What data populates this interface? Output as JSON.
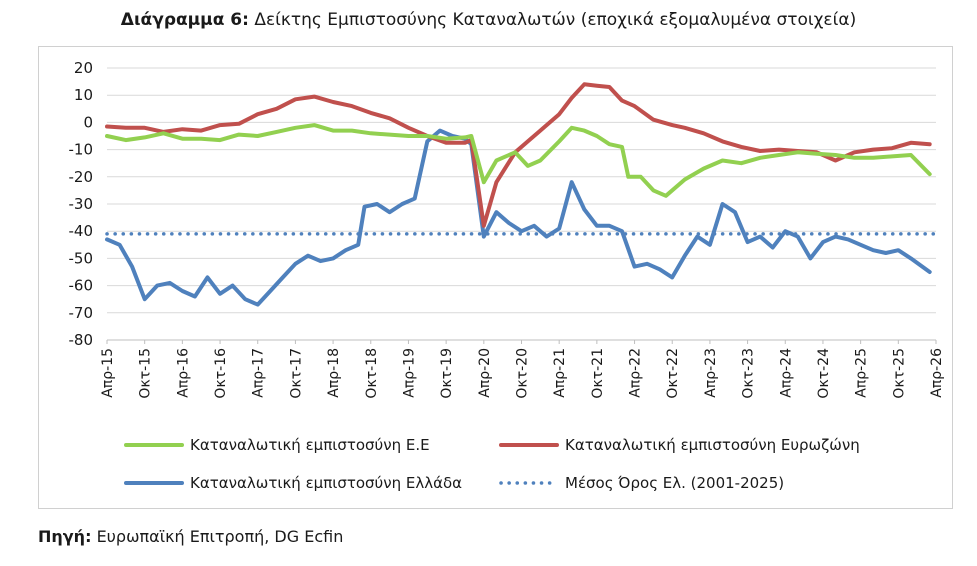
{
  "title": {
    "bold": "Διάγραμμα 6:",
    "text": "Δείκτης Εμπιστοσύνης Καταναλωτών (εποχικά εξομαλυμένα στοιχεία)"
  },
  "source": {
    "bold": "Πηγή:",
    "text": "Ευρωπαϊκή Επιτροπή, DG Ecfin"
  },
  "colors": {
    "eu": "#92d050",
    "ez": "#c0504d",
    "gr": "#4f81bd",
    "avg": "#4f81bd"
  },
  "chart_data": {
    "type": "line",
    "ylim": [
      -80,
      20
    ],
    "yticks": [
      20,
      10,
      0,
      -10,
      -20,
      -30,
      -40,
      -50,
      -60,
      -70,
      -80
    ],
    "xrange": [
      "2015-04",
      "2026-04"
    ],
    "xticks": [
      "Απρ-15",
      "Οκτ-15",
      "Απρ-16",
      "Οκτ-16",
      "Απρ-17",
      "Οκτ-17",
      "Απρ-18",
      "Οκτ-18",
      "Απρ-19",
      "Οκτ-19",
      "Απρ-20",
      "Οκτ-20",
      "Απρ-21",
      "Οκτ-21",
      "Απρ-22",
      "Οκτ-22",
      "Απρ-23",
      "Οκτ-23",
      "Απρ-24",
      "Οκτ-24",
      "Απρ-25",
      "Οκτ-25",
      "Απρ-26"
    ],
    "legend_position": "bottom",
    "series": [
      {
        "key": "eu",
        "name": "Καταναλωτική εμπιστοσύνη Ε.Ε",
        "points": [
          [
            "2015-04",
            -5
          ],
          [
            "2015-07",
            -6.5
          ],
          [
            "2015-10",
            -5.5
          ],
          [
            "2016-01",
            -4
          ],
          [
            "2016-04",
            -6
          ],
          [
            "2016-07",
            -6
          ],
          [
            "2016-10",
            -6.5
          ],
          [
            "2017-01",
            -4.5
          ],
          [
            "2017-04",
            -5
          ],
          [
            "2017-07",
            -3.5
          ],
          [
            "2017-10",
            -2
          ],
          [
            "2018-01",
            -1
          ],
          [
            "2018-04",
            -3
          ],
          [
            "2018-07",
            -3
          ],
          [
            "2018-10",
            -4
          ],
          [
            "2019-01",
            -4.5
          ],
          [
            "2019-04",
            -5
          ],
          [
            "2019-07",
            -5
          ],
          [
            "2019-10",
            -6
          ],
          [
            "2020-01",
            -5.5
          ],
          [
            "2020-02",
            -5
          ],
          [
            "2020-04",
            -22
          ],
          [
            "2020-06",
            -14
          ],
          [
            "2020-09",
            -11
          ],
          [
            "2020-11",
            -16
          ],
          [
            "2021-01",
            -14
          ],
          [
            "2021-04",
            -7
          ],
          [
            "2021-06",
            -2
          ],
          [
            "2021-08",
            -3
          ],
          [
            "2021-10",
            -5
          ],
          [
            "2021-12",
            -8
          ],
          [
            "2022-02",
            -9
          ],
          [
            "2022-03",
            -20
          ],
          [
            "2022-05",
            -20
          ],
          [
            "2022-07",
            -25
          ],
          [
            "2022-09",
            -27
          ],
          [
            "2022-12",
            -21
          ],
          [
            "2023-03",
            -17
          ],
          [
            "2023-06",
            -14
          ],
          [
            "2023-09",
            -15
          ],
          [
            "2023-12",
            -13
          ],
          [
            "2024-03",
            -12
          ],
          [
            "2024-06",
            -11
          ],
          [
            "2024-09",
            -11.5
          ],
          [
            "2024-12",
            -12
          ],
          [
            "2025-03",
            -13
          ],
          [
            "2025-06",
            -13
          ],
          [
            "2025-09",
            -12.5
          ],
          [
            "2025-12",
            -12
          ],
          [
            "2026-03",
            -19
          ]
        ]
      },
      {
        "key": "ez",
        "name": "Καταναλωτική εμπιστοσύνη Ευρωζώνη",
        "points": [
          [
            "2015-04",
            -1.5
          ],
          [
            "2015-07",
            -2
          ],
          [
            "2015-10",
            -2
          ],
          [
            "2016-01",
            -3.5
          ],
          [
            "2016-04",
            -2.5
          ],
          [
            "2016-07",
            -3
          ],
          [
            "2016-10",
            -1
          ],
          [
            "2017-01",
            -0.5
          ],
          [
            "2017-04",
            3
          ],
          [
            "2017-07",
            5
          ],
          [
            "2017-10",
            8.5
          ],
          [
            "2018-01",
            9.5
          ],
          [
            "2018-04",
            7.5
          ],
          [
            "2018-07",
            6
          ],
          [
            "2018-10",
            3.5
          ],
          [
            "2019-01",
            1.5
          ],
          [
            "2019-04",
            -2
          ],
          [
            "2019-07",
            -5
          ],
          [
            "2019-10",
            -7.5
          ],
          [
            "2020-01",
            -7.5
          ],
          [
            "2020-02",
            -6.5
          ],
          [
            "2020-04",
            -38
          ],
          [
            "2020-06",
            -22
          ],
          [
            "2020-09",
            -11
          ],
          [
            "2020-11",
            -7
          ],
          [
            "2021-01",
            -3
          ],
          [
            "2021-04",
            3
          ],
          [
            "2021-06",
            9
          ],
          [
            "2021-08",
            14
          ],
          [
            "2021-10",
            13.5
          ],
          [
            "2021-12",
            13
          ],
          [
            "2022-02",
            8
          ],
          [
            "2022-04",
            6
          ],
          [
            "2022-07",
            1
          ],
          [
            "2022-10",
            -1
          ],
          [
            "2022-12",
            -2
          ],
          [
            "2023-03",
            -4
          ],
          [
            "2023-06",
            -7
          ],
          [
            "2023-09",
            -9
          ],
          [
            "2023-12",
            -10.5
          ],
          [
            "2024-03",
            -10
          ],
          [
            "2024-06",
            -10.5
          ],
          [
            "2024-09",
            -11
          ],
          [
            "2024-12",
            -14
          ],
          [
            "2025-03",
            -11
          ],
          [
            "2025-06",
            -10
          ],
          [
            "2025-09",
            -9.5
          ],
          [
            "2025-12",
            -7.5
          ],
          [
            "2026-03",
            -8
          ]
        ]
      },
      {
        "key": "gr",
        "name": "Καταναλωτική εμπιστοσύνη Ελλάδα",
        "points": [
          [
            "2015-04",
            -43
          ],
          [
            "2015-06",
            -45
          ],
          [
            "2015-08",
            -53
          ],
          [
            "2015-10",
            -65
          ],
          [
            "2015-12",
            -60
          ],
          [
            "2016-02",
            -59
          ],
          [
            "2016-04",
            -62
          ],
          [
            "2016-06",
            -64
          ],
          [
            "2016-08",
            -57
          ],
          [
            "2016-10",
            -63
          ],
          [
            "2016-12",
            -60
          ],
          [
            "2017-02",
            -65
          ],
          [
            "2017-04",
            -67
          ],
          [
            "2017-06",
            -62
          ],
          [
            "2017-08",
            -57
          ],
          [
            "2017-10",
            -52
          ],
          [
            "2017-12",
            -49
          ],
          [
            "2018-02",
            -51
          ],
          [
            "2018-04",
            -50
          ],
          [
            "2018-06",
            -47
          ],
          [
            "2018-08",
            -45
          ],
          [
            "2018-09",
            -31
          ],
          [
            "2018-11",
            -30
          ],
          [
            "2019-01",
            -33
          ],
          [
            "2019-03",
            -30
          ],
          [
            "2019-05",
            -28
          ],
          [
            "2019-07",
            -7
          ],
          [
            "2019-09",
            -3
          ],
          [
            "2019-11",
            -5
          ],
          [
            "2020-01",
            -6
          ],
          [
            "2020-02",
            -8
          ],
          [
            "2020-04",
            -42
          ],
          [
            "2020-06",
            -33
          ],
          [
            "2020-08",
            -37
          ],
          [
            "2020-10",
            -40
          ],
          [
            "2020-12",
            -38
          ],
          [
            "2021-02",
            -42
          ],
          [
            "2021-04",
            -39
          ],
          [
            "2021-06",
            -22
          ],
          [
            "2021-08",
            -32
          ],
          [
            "2021-10",
            -38
          ],
          [
            "2021-12",
            -38
          ],
          [
            "2022-02",
            -40
          ],
          [
            "2022-04",
            -53
          ],
          [
            "2022-06",
            -52
          ],
          [
            "2022-08",
            -54
          ],
          [
            "2022-10",
            -57
          ],
          [
            "2022-12",
            -49
          ],
          [
            "2023-02",
            -42
          ],
          [
            "2023-04",
            -45
          ],
          [
            "2023-06",
            -30
          ],
          [
            "2023-08",
            -33
          ],
          [
            "2023-10",
            -44
          ],
          [
            "2023-12",
            -42
          ],
          [
            "2024-02",
            -46
          ],
          [
            "2024-04",
            -40
          ],
          [
            "2024-06",
            -42
          ],
          [
            "2024-08",
            -50
          ],
          [
            "2024-10",
            -44
          ],
          [
            "2024-12",
            -42
          ],
          [
            "2025-02",
            -43
          ],
          [
            "2025-04",
            -45
          ],
          [
            "2025-06",
            -47
          ],
          [
            "2025-08",
            -48
          ],
          [
            "2025-10",
            -47
          ],
          [
            "2025-12",
            -50
          ],
          [
            "2026-03",
            -55
          ]
        ]
      },
      {
        "key": "avg",
        "name": "Μέσος Όρος Ελ. (2001-2025)",
        "dotted": true,
        "points": [
          [
            "2015-04",
            -41
          ],
          [
            "2026-04",
            -41
          ]
        ]
      }
    ]
  }
}
